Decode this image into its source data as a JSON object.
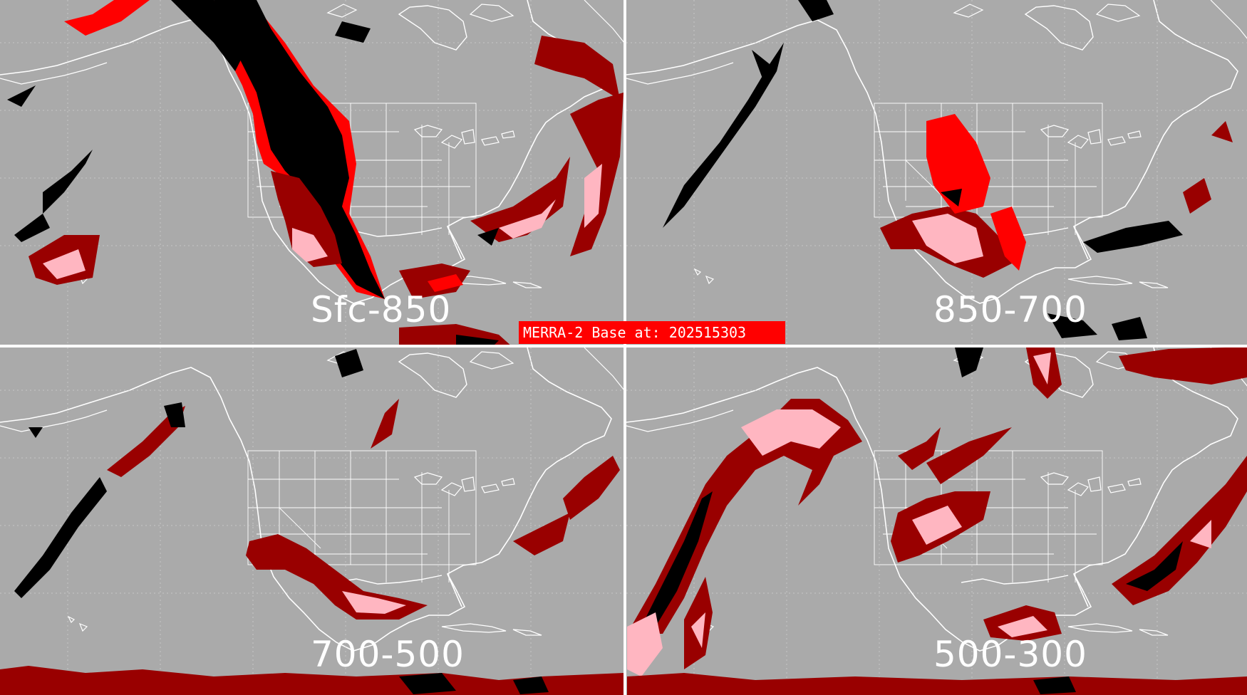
{
  "figure": {
    "banner_text": "MERRA-2 Base at: 202515303",
    "banner_color": "#ff0000"
  },
  "panels": [
    {
      "label": "Sfc-850"
    },
    {
      "label": "850-700"
    },
    {
      "label": "700-500"
    },
    {
      "label": "500-300"
    }
  ],
  "colors": {
    "background": "#aaaaaa",
    "divider": "#ffffff",
    "coastline": "#ffffff",
    "graticule": "#cfcfcf",
    "category_black": "#000000",
    "category_red": "#ff0000",
    "category_darkred": "#990000",
    "category_pink": "#ffb6c1"
  }
}
